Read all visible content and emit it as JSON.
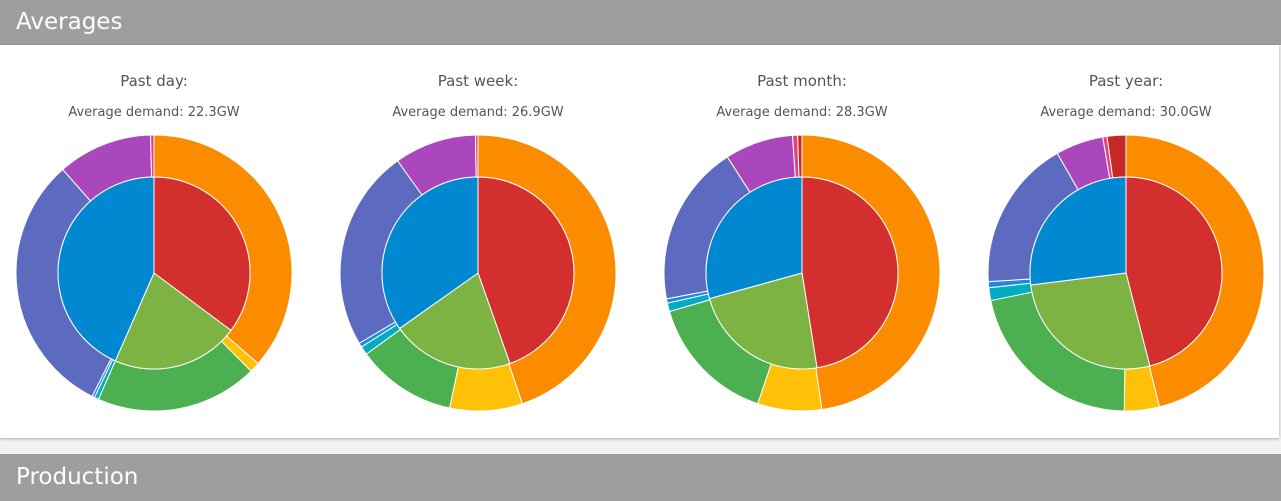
{
  "sections": {
    "averages": "Averages",
    "production": "Production"
  },
  "colors": {
    "inner": [
      "#d32f2f",
      "#7cb342",
      "#0288d1"
    ],
    "outer": [
      "#fb8c00",
      "#ffc107",
      "#4caf50",
      "#00acc1",
      "#1e88e5",
      "#5c6bc0",
      "#ab47bc",
      "#ec407a",
      "#c62828"
    ]
  },
  "chart_data": [
    {
      "type": "pie",
      "title": "Past day:",
      "subtitle": "Average demand: 22.3GW",
      "inner": [
        35.2,
        21.4,
        43.4
      ],
      "outer": [
        36.4,
        1.2,
        19.0,
        0.5,
        0.3,
        31.1,
        11.1,
        0.4,
        0.0
      ]
    },
    {
      "type": "pie",
      "title": "Past week:",
      "subtitle": "Average demand: 26.9GW",
      "inner": [
        44.6,
        20.6,
        34.8
      ],
      "outer": [
        44.8,
        8.5,
        11.7,
        1.0,
        0.5,
        23.6,
        9.6,
        0.3,
        0.0
      ]
    },
    {
      "type": "pie",
      "title": "Past month:",
      "subtitle": "Average demand: 28.3GW",
      "inner": [
        47.5,
        23.2,
        29.3
      ],
      "outer": [
        47.7,
        7.5,
        15.3,
        1.0,
        0.5,
        18.9,
        8.0,
        0.6,
        0.5
      ]
    },
    {
      "type": "pie",
      "title": "Past year:",
      "subtitle": "Average demand: 30.0GW",
      "inner": [
        46.0,
        27.0,
        27.0
      ],
      "outer": [
        46.1,
        4.1,
        21.6,
        1.5,
        0.7,
        17.7,
        5.6,
        0.5,
        2.2
      ]
    }
  ]
}
